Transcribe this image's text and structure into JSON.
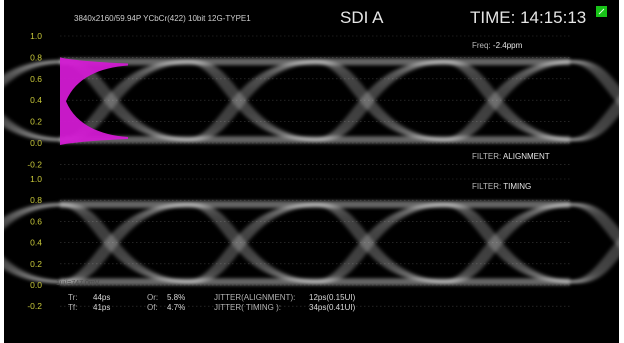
{
  "header": {
    "format": "3840x2160/59.94P YCbCr(422) 10bit 12G-TYPE1",
    "input": "SDI A",
    "time_label": "TIME:",
    "time_value": "14:15:13"
  },
  "status": {
    "lock_icon": "lock-indicator-icon",
    "lock_color": "#18c418"
  },
  "top_panel": {
    "freq_label": "Freq:",
    "freq_value": "-2.4ppm",
    "filter_label": "FILTER:",
    "filter_value": "ALIGNMENT",
    "y_ticks": [
      "1.0",
      "0.8",
      "0.6",
      "0.4",
      "0.2",
      "0.0",
      "-0.2"
    ]
  },
  "bottom_panel": {
    "filter_label": "FILTER:",
    "filter_value": "TIMING",
    "y_ticks": [
      "1.0",
      "0.8",
      "0.6",
      "0.4",
      "0.2",
      "0.0",
      "-0.2"
    ],
    "ui_value": "1ui/=747.0mV"
  },
  "measurements": {
    "tr_label": "Tr:",
    "tr_value": "44ps",
    "tf_label": "Tf:",
    "tf_value": "41ps",
    "or_label": "Or:",
    "or_value": "5.8%",
    "of_label": "Of:",
    "of_value": "4.7%",
    "jitter_align_label": "JITTER(ALIGNMENT):",
    "jitter_align_value": "12ps(0.15UI)",
    "jitter_timing_label": "JITTER( TIMING ):",
    "jitter_timing_value": "34ps(0.41UI)"
  },
  "colors": {
    "background": "#000000",
    "trace": "#e0e0e0",
    "axis_labels": "#c9c93a",
    "histogram": "#d21ad2"
  }
}
